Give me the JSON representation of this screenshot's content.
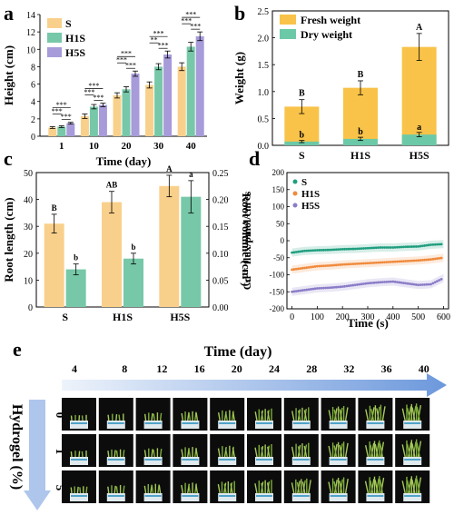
{
  "colors": {
    "S": "#F9D08B",
    "H1S": "#76C8A8",
    "H5S": "#A79BDA",
    "fresh": "#F9C349",
    "dry": "#6CC9A7",
    "root_length": "#F9D08B",
    "root_volume": "#76C8A8",
    "flux_S": "#1F9E7F",
    "flux_H1S": "#F08A3C",
    "flux_H5S": "#8B7CC8",
    "arrow_light": "#E6EEF9",
    "arrow_dark": "#5A8BD6"
  },
  "chart_data": [
    {
      "panel": "a",
      "type": "bar",
      "xlabel": "Time (day)",
      "ylabel": "Height (cm)",
      "ylim": [
        0,
        14
      ],
      "yticks": [
        "0",
        "2",
        "4",
        "6",
        "8",
        "10",
        "12",
        "14"
      ],
      "categories": [
        "1",
        "10",
        "20",
        "30",
        "40"
      ],
      "series": [
        {
          "name": "S",
          "values": [
            1.0,
            2.3,
            4.7,
            5.9,
            8.0
          ],
          "errors": [
            0.1,
            0.25,
            0.3,
            0.35,
            0.45
          ]
        },
        {
          "name": "H1S",
          "values": [
            1.1,
            3.4,
            5.4,
            8.0,
            10.3
          ],
          "errors": [
            0.1,
            0.25,
            0.3,
            0.35,
            0.5
          ]
        },
        {
          "name": "H5S",
          "values": [
            1.5,
            3.6,
            7.2,
            9.4,
            11.5
          ],
          "errors": [
            0.1,
            0.2,
            0.3,
            0.4,
            0.5
          ]
        }
      ],
      "annotations": [
        "***",
        "***",
        "***",
        "***",
        "***",
        "***",
        "***",
        "***",
        "***",
        "***",
        "**",
        "***",
        "***",
        "***",
        "***"
      ],
      "legend_position": "top-left"
    },
    {
      "panel": "b",
      "type": "bar",
      "ylabel": "Weight (g)",
      "ylim": [
        0,
        2.5
      ],
      "yticks": [
        "0.0",
        "0.5",
        "1.0",
        "1.5",
        "2.0",
        "2.5"
      ],
      "categories": [
        "S",
        "H1S",
        "H5S"
      ],
      "series": [
        {
          "name": "Fresh weight",
          "values": [
            0.72,
            1.07,
            1.83
          ],
          "errors": [
            0.13,
            0.13,
            0.25
          ]
        },
        {
          "name": "Dry weight",
          "values": [
            0.07,
            0.12,
            0.2
          ],
          "errors": [
            0.02,
            0.03,
            0.04
          ]
        }
      ],
      "fresh_labels": [
        "B",
        "B",
        "A"
      ],
      "dry_labels": [
        "b",
        "b",
        "a"
      ],
      "legend_position": "top-left"
    },
    {
      "panel": "c",
      "type": "bar",
      "ylabel": "Root length (cm)",
      "ylabel_right": "Root volume (cm³)",
      "ylim": [
        0,
        50
      ],
      "ylim_right": [
        0,
        0.25
      ],
      "yticks": [
        "0",
        "10",
        "20",
        "30",
        "40",
        "50"
      ],
      "yticks_right": [
        "0.00",
        "0.05",
        "0.10",
        "0.15",
        "0.20",
        "0.25"
      ],
      "categories": [
        "S",
        "H1S",
        "H5S"
      ],
      "series": [
        {
          "name": "Root length",
          "axis": "left",
          "values": [
            31,
            39,
            45
          ],
          "errors": [
            3.5,
            4,
            4
          ],
          "labels": [
            "B",
            "AB",
            "A"
          ]
        },
        {
          "name": "Root volume",
          "axis": "right",
          "values": [
            0.07,
            0.09,
            0.205
          ],
          "errors": [
            0.01,
            0.01,
            0.03
          ],
          "labels": [
            "b",
            "b",
            "a"
          ]
        }
      ]
    },
    {
      "panel": "d",
      "type": "scatter",
      "xlabel": "Time (s)",
      "ylabel": "Cd²⁺ flux/pmol/cm²·s",
      "xlim": [
        -20,
        620
      ],
      "ylim": [
        -200,
        200
      ],
      "xticks": [
        "0",
        "100",
        "200",
        "300",
        "400",
        "500",
        "600"
      ],
      "yticks": [
        "-200",
        "-150",
        "-100",
        "-50",
        "0",
        "50",
        "100",
        "150",
        "200"
      ],
      "series": [
        {
          "name": "S",
          "x": [
            0,
            50,
            100,
            150,
            200,
            250,
            300,
            350,
            400,
            450,
            500,
            550,
            600
          ],
          "y": [
            -35,
            -30,
            -28,
            -27,
            -25,
            -24,
            -22,
            -20,
            -20,
            -18,
            -17,
            -12,
            -10
          ]
        },
        {
          "name": "H1S",
          "x": [
            0,
            50,
            100,
            150,
            200,
            250,
            300,
            350,
            400,
            450,
            500,
            550,
            600
          ],
          "y": [
            -85,
            -80,
            -75,
            -73,
            -70,
            -68,
            -66,
            -64,
            -62,
            -60,
            -58,
            -55,
            -50
          ]
        },
        {
          "name": "H5S",
          "x": [
            0,
            50,
            100,
            150,
            200,
            250,
            300,
            350,
            400,
            450,
            500,
            550,
            600
          ],
          "y": [
            -150,
            -145,
            -140,
            -138,
            -135,
            -130,
            -125,
            -122,
            -120,
            -125,
            -130,
            -128,
            -110
          ]
        }
      ],
      "legend_position": "top-left"
    }
  ],
  "panel_e": {
    "label": "e",
    "title": "Time (day)",
    "days": [
      "4",
      "8",
      "12",
      "16",
      "20",
      "24",
      "28",
      "32",
      "36",
      "40"
    ],
    "ylabel": "Hydrogel (%)",
    "rows": [
      "0",
      "1",
      "5"
    ]
  },
  "panel_labels": [
    "a",
    "b",
    "c",
    "d"
  ]
}
